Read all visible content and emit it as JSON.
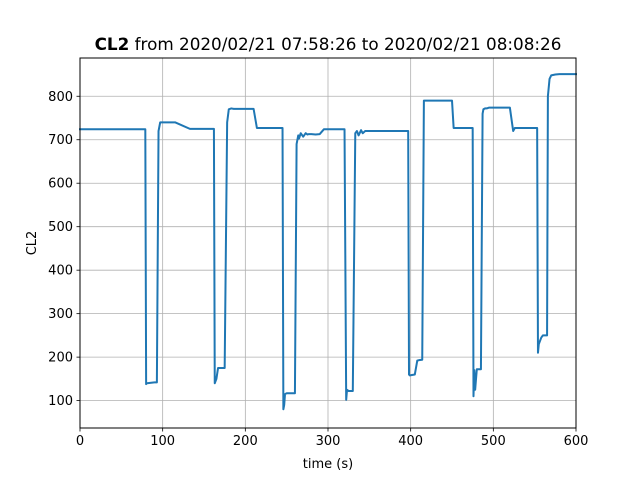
{
  "chart_data": {
    "type": "line",
    "title_bold": "CL2",
    "title_rest": " from 2020/02/21 07:58:26 to 2020/02/21 08:08:26",
    "xlabel": "time (s)",
    "ylabel": "CL2",
    "xlim": [
      0,
      600
    ],
    "ylim": [
      37,
      888
    ],
    "xticks": [
      0,
      100,
      200,
      300,
      400,
      500,
      600
    ],
    "yticks": [
      100,
      200,
      300,
      400,
      500,
      600,
      700,
      800
    ],
    "grid": true,
    "line_color": "#1f77b4",
    "series": [
      {
        "x": [
          0,
          79,
          80,
          81,
          90,
          93,
          95,
          97,
          115,
          133,
          162,
          163,
          165,
          167,
          170,
          175,
          178,
          180,
          183,
          186,
          210,
          214,
          216,
          245,
          246,
          247,
          248,
          250,
          255,
          260,
          262,
          264,
          265,
          267,
          270,
          273,
          275,
          277,
          280,
          285,
          290,
          295,
          298,
          300,
          320,
          322,
          323,
          325,
          330,
          333,
          335,
          337,
          340,
          342,
          345,
          350,
          360,
          380,
          397,
          398,
          399,
          405,
          408,
          410,
          414,
          416,
          418,
          420,
          450,
          452,
          475,
          476,
          477,
          478,
          480,
          485,
          487,
          488,
          490,
          492,
          495,
          500,
          520,
          524,
          526,
          553,
          554,
          555,
          558,
          560,
          565,
          566,
          568,
          570,
          575,
          580,
          600
        ],
        "y": [
          724,
          724,
          138,
          140,
          142,
          142,
          720,
          740,
          740,
          725,
          725,
          140,
          150,
          175,
          175,
          175,
          740,
          770,
          772,
          771,
          771,
          727,
          727,
          727,
          80,
          90,
          115,
          117,
          117,
          117,
          690,
          710,
          703,
          715,
          707,
          715,
          712,
          713,
          713,
          712,
          713,
          724,
          724,
          724,
          724,
          102,
          125,
          122,
          122,
          715,
          720,
          710,
          722,
          715,
          720,
          720,
          720,
          720,
          720,
          160,
          158,
          160,
          192,
          193,
          194,
          790,
          790,
          790,
          790,
          727,
          727,
          110,
          170,
          125,
          172,
          172,
          760,
          770,
          772,
          772,
          774,
          774,
          774,
          720,
          727,
          727,
          210,
          230,
          245,
          250,
          250,
          800,
          840,
          848,
          850,
          851,
          851
        ]
      }
    ]
  }
}
